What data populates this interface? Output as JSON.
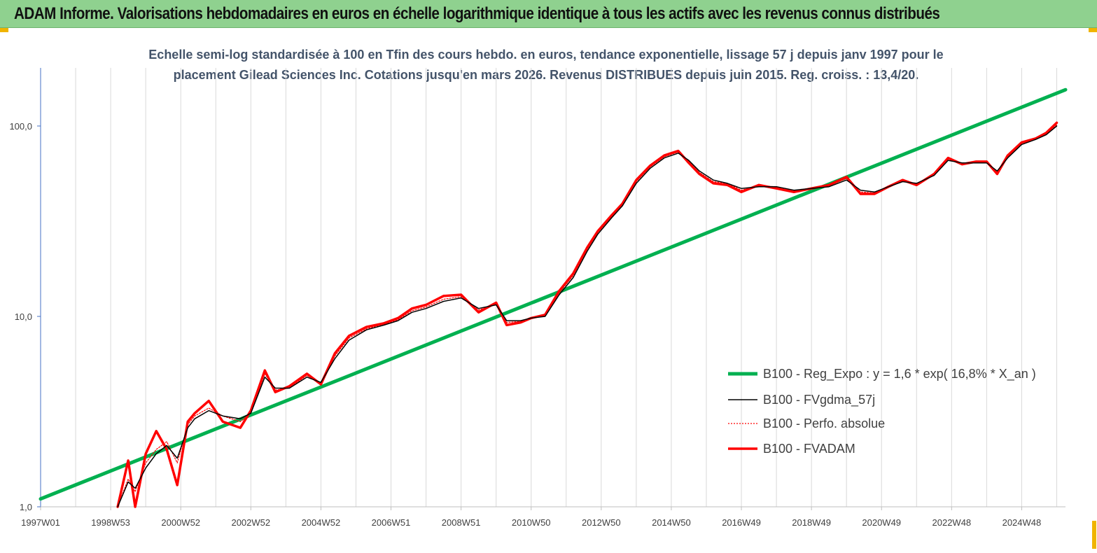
{
  "banner": {
    "title": "ADAM Informe. Valorisations hebdomadaires en euros en échelle logarithmique identique à tous les actifs avec les revenus connus distribués"
  },
  "colors": {
    "banner_bg": "#8fd18f",
    "corner_accent": "#f0b400",
    "regression": "#00b050",
    "gdma": "#000000",
    "perfo": "#ff0000",
    "fvadam": "#ff0000",
    "grid": "#d9d9d9",
    "axis": "#4472c4"
  },
  "chart_data": {
    "type": "line",
    "title_line1": "Echelle semi-log standardisée à 100 en Tfin des cours hebdo. en euros, tendance exponentielle, lissage 57 j depuis janv 1997 pour le",
    "title_line2": "placement Gilead Sciences Inc. Cotations jusqu'en mars 2026. Revenus DISTRIBUES depuis juin 2015. Reg. croiss. : 13,4/20.",
    "y_scale": "log",
    "ylim": [
      1,
      180
    ],
    "xlim": [
      1997.0,
      2026.25
    ],
    "y_ticks": [
      {
        "value": 1,
        "label": "1,0"
      },
      {
        "value": 10,
        "label": "10,0"
      },
      {
        "value": 100,
        "label": "100,0"
      }
    ],
    "x_ticks": [
      {
        "value": 1997.0,
        "label": "1997W01"
      },
      {
        "value": 1999.0,
        "label": "1998W53"
      },
      {
        "value": 2001.0,
        "label": "2000W52"
      },
      {
        "value": 2003.0,
        "label": "2002W52"
      },
      {
        "value": 2005.0,
        "label": "2004W52"
      },
      {
        "value": 2007.0,
        "label": "2006W51"
      },
      {
        "value": 2009.0,
        "label": "2008W51"
      },
      {
        "value": 2011.0,
        "label": "2010W50"
      },
      {
        "value": 2013.0,
        "label": "2012W50"
      },
      {
        "value": 2015.0,
        "label": "2014W50"
      },
      {
        "value": 2017.0,
        "label": "2016W49"
      },
      {
        "value": 2019.0,
        "label": "2018W49"
      },
      {
        "value": 2021.0,
        "label": "2020W49"
      },
      {
        "value": 2023.0,
        "label": "2022W48"
      },
      {
        "value": 2025.0,
        "label": "2024W48"
      }
    ],
    "grid": {
      "vertical": true,
      "horizontal": false
    },
    "legend_position": "right",
    "series": [
      {
        "name": "B100 - Reg_Expo : y = 1,6 * exp( 16,8% *  X_an )",
        "style": "solid-thick",
        "x": [
          1997.0,
          2026.25
        ],
        "y": [
          1.1,
          155
        ]
      },
      {
        "name": "B100 - FVgdma_57j",
        "style": "solid-thin",
        "x": [
          1999.2,
          1999.5,
          1999.7,
          2000.0,
          2000.3,
          2000.6,
          2000.9,
          2001.2,
          2001.4,
          2001.8,
          2002.2,
          2002.7,
          2003.0,
          2003.4,
          2003.7,
          2004.1,
          2004.6,
          2005.0,
          2005.4,
          2005.8,
          2006.3,
          2006.8,
          2007.2,
          2007.6,
          2008.0,
          2008.5,
          2009.0,
          2009.5,
          2010.0,
          2010.3,
          2010.7,
          2011.0,
          2011.4,
          2011.8,
          2012.2,
          2012.6,
          2012.9,
          2013.3,
          2013.6,
          2014.0,
          2014.4,
          2014.8,
          2015.2,
          2015.5,
          2015.8,
          2016.2,
          2016.6,
          2017.0,
          2017.5,
          2018.0,
          2018.5,
          2019.0,
          2019.5,
          2020.0,
          2020.4,
          2020.8,
          2021.2,
          2021.6,
          2022.0,
          2022.5,
          2022.9,
          2023.3,
          2023.7,
          2024.0,
          2024.3,
          2024.6,
          2025.0,
          2025.4,
          2025.7,
          2026.0
        ],
        "y": [
          1.0,
          1.35,
          1.25,
          1.6,
          1.9,
          2.1,
          1.8,
          2.6,
          2.9,
          3.2,
          3.0,
          2.9,
          3.1,
          4.8,
          4.2,
          4.2,
          4.8,
          4.5,
          6.0,
          7.5,
          8.5,
          9.0,
          9.5,
          10.5,
          11.0,
          12.0,
          12.5,
          11.0,
          11.5,
          9.5,
          9.5,
          9.8,
          10.0,
          13.0,
          16.0,
          22.0,
          27.0,
          33.0,
          38.0,
          50.0,
          60.0,
          68.0,
          72.0,
          66.0,
          58.0,
          52.0,
          50.0,
          47.0,
          48.0,
          48.0,
          46.0,
          47.0,
          48.0,
          52.0,
          46.0,
          45.0,
          48.0,
          51.0,
          50.0,
          55.0,
          66.0,
          64.0,
          64.0,
          64.0,
          58.0,
          68.0,
          80.0,
          85.0,
          90.0,
          100.0
        ]
      },
      {
        "name": "B100 - Perfo. absolue",
        "style": "dotted",
        "x": [
          1999.2,
          1999.5,
          1999.7,
          2000.0,
          2000.3,
          2000.6,
          2000.9,
          2001.2,
          2001.4,
          2001.8,
          2002.2,
          2002.7,
          2003.0,
          2003.4,
          2003.7,
          2004.1,
          2004.6,
          2005.0,
          2005.4,
          2005.8,
          2006.3,
          2006.8,
          2007.2,
          2007.6,
          2008.0,
          2008.5,
          2009.0,
          2009.5,
          2010.0,
          2010.3,
          2010.7,
          2011.0,
          2011.4,
          2011.8,
          2012.2,
          2012.6,
          2012.9,
          2013.3,
          2013.6,
          2014.0,
          2014.4,
          2014.8,
          2015.2,
          2015.5,
          2015.8,
          2016.2,
          2016.6,
          2017.0,
          2017.5,
          2018.0,
          2018.5,
          2019.0,
          2019.5,
          2020.0,
          2020.4,
          2020.8,
          2021.2,
          2021.6,
          2022.0,
          2022.5,
          2022.9,
          2023.3,
          2023.7,
          2024.0,
          2024.3,
          2024.6,
          2025.0,
          2025.4,
          2025.7,
          2026.0
        ],
        "y": [
          1.0,
          1.4,
          1.2,
          1.7,
          2.0,
          2.2,
          1.7,
          2.7,
          3.0,
          3.3,
          3.0,
          2.8,
          3.1,
          5.0,
          4.1,
          4.2,
          4.9,
          4.4,
          6.2,
          7.7,
          8.6,
          9.1,
          9.6,
          10.7,
          11.2,
          12.3,
          12.7,
          10.8,
          11.6,
          9.3,
          9.4,
          9.8,
          10.1,
          13.3,
          16.4,
          22.5,
          27.5,
          33.5,
          38.5,
          51.0,
          61.0,
          69.0,
          73.0,
          65.0,
          57.0,
          51.0,
          50.0,
          46.0,
          48.5,
          48.0,
          45.5,
          47.0,
          48.5,
          53.0,
          45.0,
          44.5,
          48.0,
          51.5,
          49.5,
          55.5,
          67.0,
          63.5,
          64.0,
          64.5,
          57.0,
          69.0,
          81.0,
          85.0,
          91.0,
          101.0
        ]
      },
      {
        "name": "B100 - FVADAM",
        "style": "solid-thick",
        "x": [
          1999.2,
          1999.5,
          1999.7,
          2000.0,
          2000.3,
          2000.6,
          2000.9,
          2001.2,
          2001.4,
          2001.8,
          2002.2,
          2002.7,
          2003.0,
          2003.4,
          2003.7,
          2004.1,
          2004.6,
          2005.0,
          2005.4,
          2005.8,
          2006.3,
          2006.8,
          2007.2,
          2007.6,
          2008.0,
          2008.5,
          2009.0,
          2009.5,
          2010.0,
          2010.3,
          2010.7,
          2011.0,
          2011.4,
          2011.8,
          2012.2,
          2012.6,
          2012.9,
          2013.3,
          2013.6,
          2014.0,
          2014.4,
          2014.8,
          2015.2,
          2015.5,
          2015.8,
          2016.2,
          2016.6,
          2017.0,
          2017.5,
          2018.0,
          2018.5,
          2019.0,
          2019.5,
          2020.0,
          2020.4,
          2020.8,
          2021.2,
          2021.6,
          2022.0,
          2022.5,
          2022.9,
          2023.3,
          2023.7,
          2024.0,
          2024.3,
          2024.6,
          2025.0,
          2025.4,
          2025.7,
          2026.0
        ],
        "y": [
          1.0,
          1.75,
          1.0,
          1.9,
          2.5,
          2.0,
          1.3,
          2.8,
          3.1,
          3.6,
          2.8,
          2.6,
          3.2,
          5.2,
          4.0,
          4.3,
          5.0,
          4.4,
          6.4,
          7.9,
          8.8,
          9.2,
          9.8,
          11.0,
          11.5,
          12.8,
          13.0,
          10.5,
          11.8,
          9.0,
          9.3,
          9.8,
          10.2,
          13.6,
          16.8,
          23.0,
          28.0,
          34.0,
          39.0,
          52.0,
          62.0,
          70.0,
          74.0,
          64.0,
          56.0,
          50.0,
          49.0,
          45.0,
          49.0,
          47.0,
          45.0,
          47.0,
          49.0,
          54.0,
          44.0,
          44.0,
          48.0,
          52.0,
          49.0,
          56.0,
          68.0,
          63.0,
          65.0,
          65.0,
          56.0,
          70.0,
          82.0,
          86.0,
          92.0,
          104.0
        ]
      }
    ]
  }
}
